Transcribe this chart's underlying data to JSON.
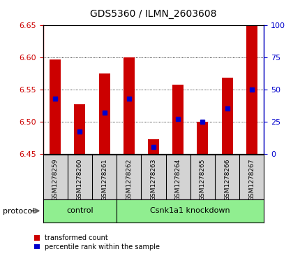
{
  "title": "GDS5360 / ILMN_2603608",
  "samples": [
    "GSM1278259",
    "GSM1278260",
    "GSM1278261",
    "GSM1278262",
    "GSM1278263",
    "GSM1278264",
    "GSM1278265",
    "GSM1278266",
    "GSM1278267"
  ],
  "bar_values": [
    6.597,
    6.527,
    6.575,
    6.6,
    6.472,
    6.558,
    6.5,
    6.568,
    6.67
  ],
  "blue_pct": [
    43,
    17,
    32,
    43,
    5,
    27,
    25,
    35,
    50
  ],
  "ylim_left": [
    6.45,
    6.65
  ],
  "ylim_right": [
    0,
    100
  ],
  "yticks_left": [
    6.45,
    6.5,
    6.55,
    6.6,
    6.65
  ],
  "yticks_right": [
    0,
    25,
    50,
    75,
    100
  ],
  "bar_color": "#cc0000",
  "blue_color": "#0000cc",
  "bar_bottom": 6.45,
  "control_count": 3,
  "group_labels": [
    "control",
    "Csnk1a1 knockdown"
  ],
  "protocol_label": "protocol",
  "legend_red": "transformed count",
  "legend_blue": "percentile rank within the sample",
  "tick_color_left": "#cc0000",
  "tick_color_right": "#0000cc",
  "label_bg": "#d3d3d3",
  "proto_bg": "#90ee90"
}
